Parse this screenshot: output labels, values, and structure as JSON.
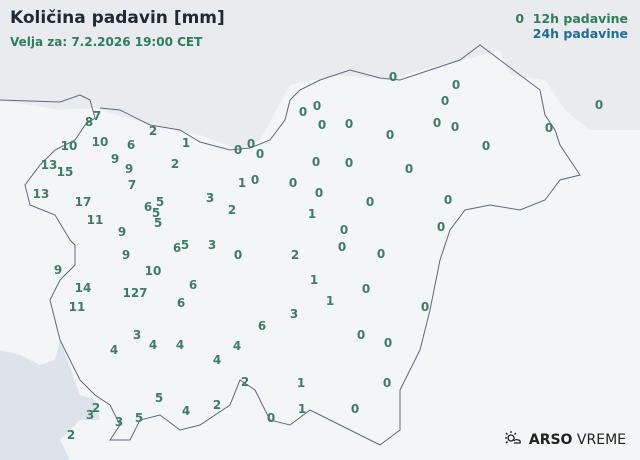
{
  "header": {
    "title": "Količina padavin [mm]",
    "valid": "Velja za: 7.2.2026 19:00 CET"
  },
  "legend": {
    "sample_value": "0",
    "item_12h": "12h padavine",
    "item_24h": "24h padavine",
    "color_12h": "#2e7d5b",
    "color_24h": "#1f6b9a"
  },
  "stations": [
    "7",
    "8",
    "2",
    "1",
    "10",
    "10",
    "6",
    "9",
    "9",
    "2",
    "13",
    "15",
    "7",
    "13",
    "17",
    "6",
    "5",
    "5",
    "5",
    "3",
    "11",
    "9",
    "2",
    "6",
    "5",
    "3",
    "9",
    "10",
    "9",
    "14",
    "127",
    "6",
    "11",
    "6",
    "3",
    "4",
    "4",
    "4",
    "6",
    "4",
    "4",
    "3",
    "5",
    "2",
    "3",
    "5",
    "3",
    "4",
    "2",
    "2",
    "1",
    "1",
    "0",
    "2",
    "0",
    "0",
    "0",
    "0",
    "0",
    "0",
    "0",
    "0",
    "0",
    "0",
    "0",
    "0",
    "0",
    "0",
    "0",
    "0",
    "0",
    "1",
    "0",
    "0",
    "0",
    "1",
    "0",
    "0",
    "0",
    "0",
    "0",
    "0",
    "2",
    "1",
    "0",
    "1",
    "0",
    "0",
    "0",
    "0",
    "0",
    "0",
    "0",
    "0"
  ],
  "logo": {
    "brand": "ARSO",
    "suffix": "VREME",
    "icon": "sun-cloud-icon"
  }
}
